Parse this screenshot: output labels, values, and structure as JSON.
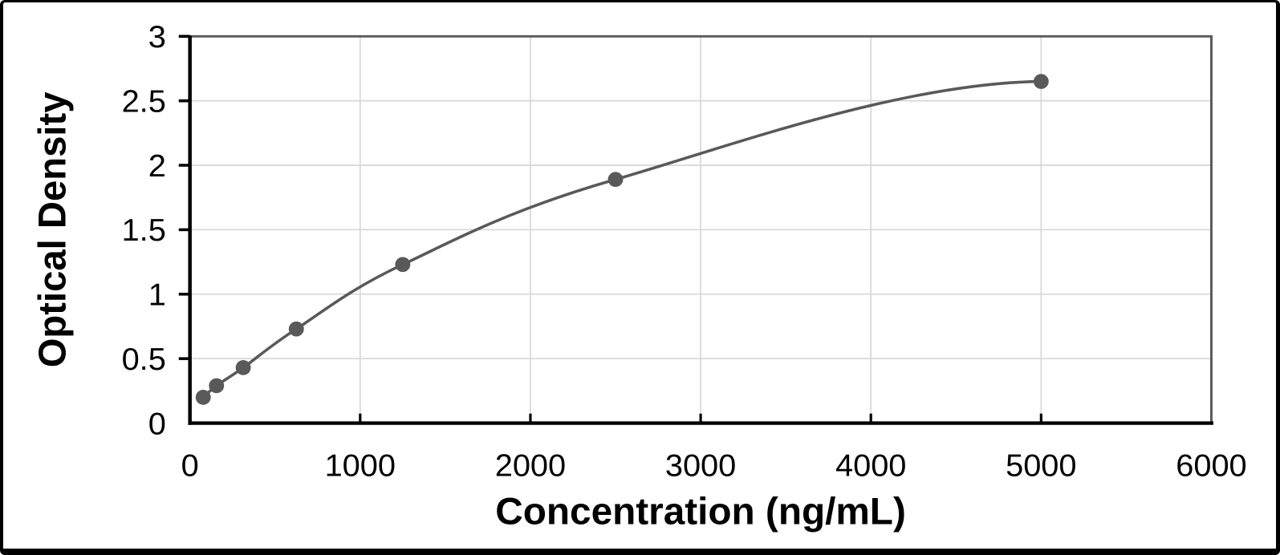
{
  "frame": {
    "background": "#ffffff",
    "border_color": "#000000"
  },
  "chart_data": {
    "type": "scatter",
    "has_fitted_curve": true,
    "title": "",
    "xlabel": "Concentration (ng/mL)",
    "ylabel": "Optical Density",
    "x": [
      78,
      156,
      313,
      625,
      1250,
      2500,
      5000
    ],
    "y": [
      0.2,
      0.29,
      0.43,
      0.73,
      1.23,
      1.89,
      2.65
    ],
    "xlim": [
      0,
      6000
    ],
    "ylim": [
      0,
      3
    ],
    "x_ticks": [
      0,
      1000,
      2000,
      3000,
      4000,
      5000,
      6000
    ],
    "x_tick_labels": [
      "0",
      "1000",
      "2000",
      "3000",
      "4000",
      "5000",
      "6000"
    ],
    "y_ticks": [
      0,
      0.5,
      1,
      1.5,
      2,
      2.5,
      3
    ],
    "y_tick_labels": [
      "0",
      "0.5",
      "1",
      "1.5",
      "2",
      "2.5",
      "3"
    ],
    "grid": true,
    "legend": false,
    "colors": {
      "marker": "#595959",
      "line": "#595959",
      "gridline": "#d9d9d9",
      "axis": "#000000",
      "plot_border": "#595959",
      "text": "#000000"
    }
  }
}
